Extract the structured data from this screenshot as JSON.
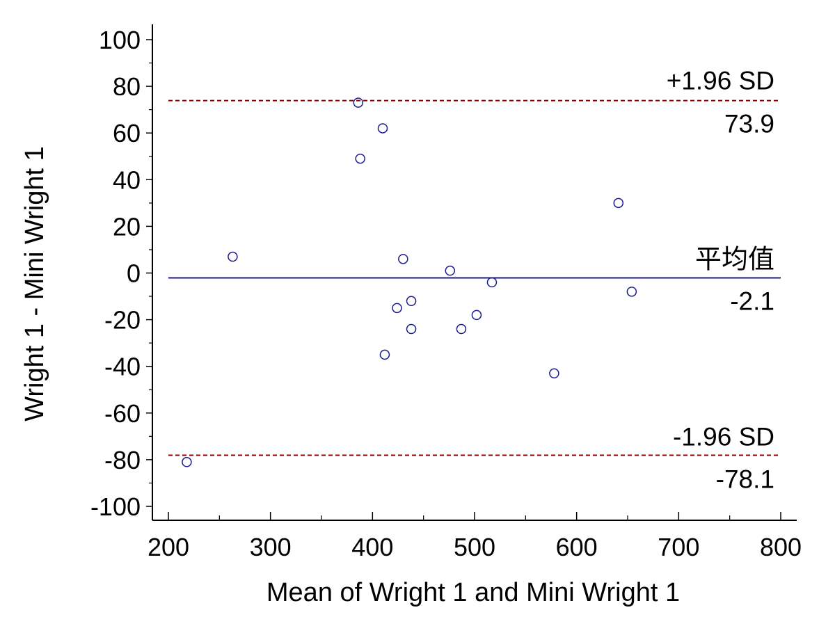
{
  "chart_data": {
    "type": "scatter",
    "xlabel": "Mean of Wright 1 and Mini Wright 1",
    "ylabel": "Wright 1 - Mini Wright 1",
    "xlim": [
      200,
      800
    ],
    "ylim": [
      -100,
      100
    ],
    "x_ticks": [
      200,
      300,
      400,
      500,
      600,
      700,
      800
    ],
    "y_ticks": [
      -100,
      -80,
      -60,
      -40,
      -20,
      0,
      20,
      40,
      60,
      80,
      100
    ],
    "x_tick_labels": [
      "200",
      "300",
      "400",
      "500",
      "600",
      "700",
      "800"
    ],
    "y_tick_labels": [
      "-100",
      "-80",
      "-60",
      "-40",
      "-20",
      "0",
      "20",
      "40",
      "60",
      "80",
      "100"
    ],
    "grid": false,
    "points": [
      {
        "x": 218,
        "y": -81
      },
      {
        "x": 263,
        "y": 7
      },
      {
        "x": 386,
        "y": 73
      },
      {
        "x": 388,
        "y": 49
      },
      {
        "x": 410,
        "y": 62
      },
      {
        "x": 412,
        "y": -35
      },
      {
        "x": 424,
        "y": -15
      },
      {
        "x": 430,
        "y": 6
      },
      {
        "x": 438,
        "y": -12
      },
      {
        "x": 438,
        "y": -24
      },
      {
        "x": 476,
        "y": 1
      },
      {
        "x": 487,
        "y": -24
      },
      {
        "x": 502,
        "y": -18
      },
      {
        "x": 517,
        "y": -4
      },
      {
        "x": 578,
        "y": -43
      },
      {
        "x": 641,
        "y": 30
      },
      {
        "x": 654,
        "y": -8
      }
    ],
    "reference_lines": {
      "upper": {
        "label": "+1.96 SD",
        "value": 73.9,
        "value_text": "73.9",
        "style": "dashed",
        "color": "#8b0000"
      },
      "mean": {
        "label": "平均值",
        "value": -2.1,
        "value_text": "-2.1",
        "style": "solid",
        "color": "#1a1a8c"
      },
      "lower": {
        "label": "-1.96 SD",
        "value": -78.1,
        "value_text": "-78.1",
        "style": "dashed",
        "color": "#8b0000"
      }
    },
    "marker": {
      "shape": "open-circle",
      "color": "#1a1a8c"
    }
  }
}
